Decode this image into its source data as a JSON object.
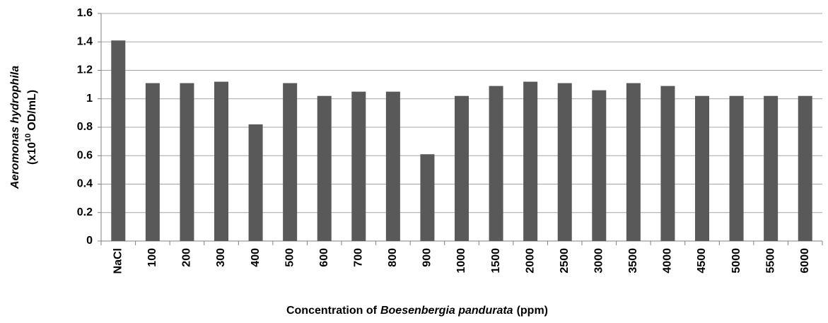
{
  "chart_data": {
    "type": "bar",
    "ylabel": [
      "Aeromonas hydrophila",
      "(x10",
      "10",
      "OD/mL)"
    ],
    "xlabel": [
      "Concentration of",
      "Boesenbergia pandurata",
      "(ppm)"
    ],
    "categories": [
      "NaCl",
      "100",
      "200",
      "300",
      "400",
      "500",
      "600",
      "700",
      "800",
      "900",
      "1000",
      "1500",
      "2000",
      "2500",
      "3000",
      "3500",
      "4000",
      "4500",
      "5000",
      "5500",
      "6000"
    ],
    "values": [
      1.41,
      1.11,
      1.11,
      1.12,
      0.82,
      1.11,
      1.02,
      1.05,
      1.05,
      0.61,
      1.02,
      1.09,
      1.12,
      1.11,
      1.06,
      1.11,
      1.09,
      1.02,
      1.02,
      1.02,
      1.02
    ],
    "color": "#595959",
    "ylim": [
      0,
      1.6
    ],
    "yticks": [
      0,
      0.2,
      0.4,
      0.6,
      0.8,
      1,
      1.2,
      1.4,
      1.6
    ],
    "grid": true
  }
}
